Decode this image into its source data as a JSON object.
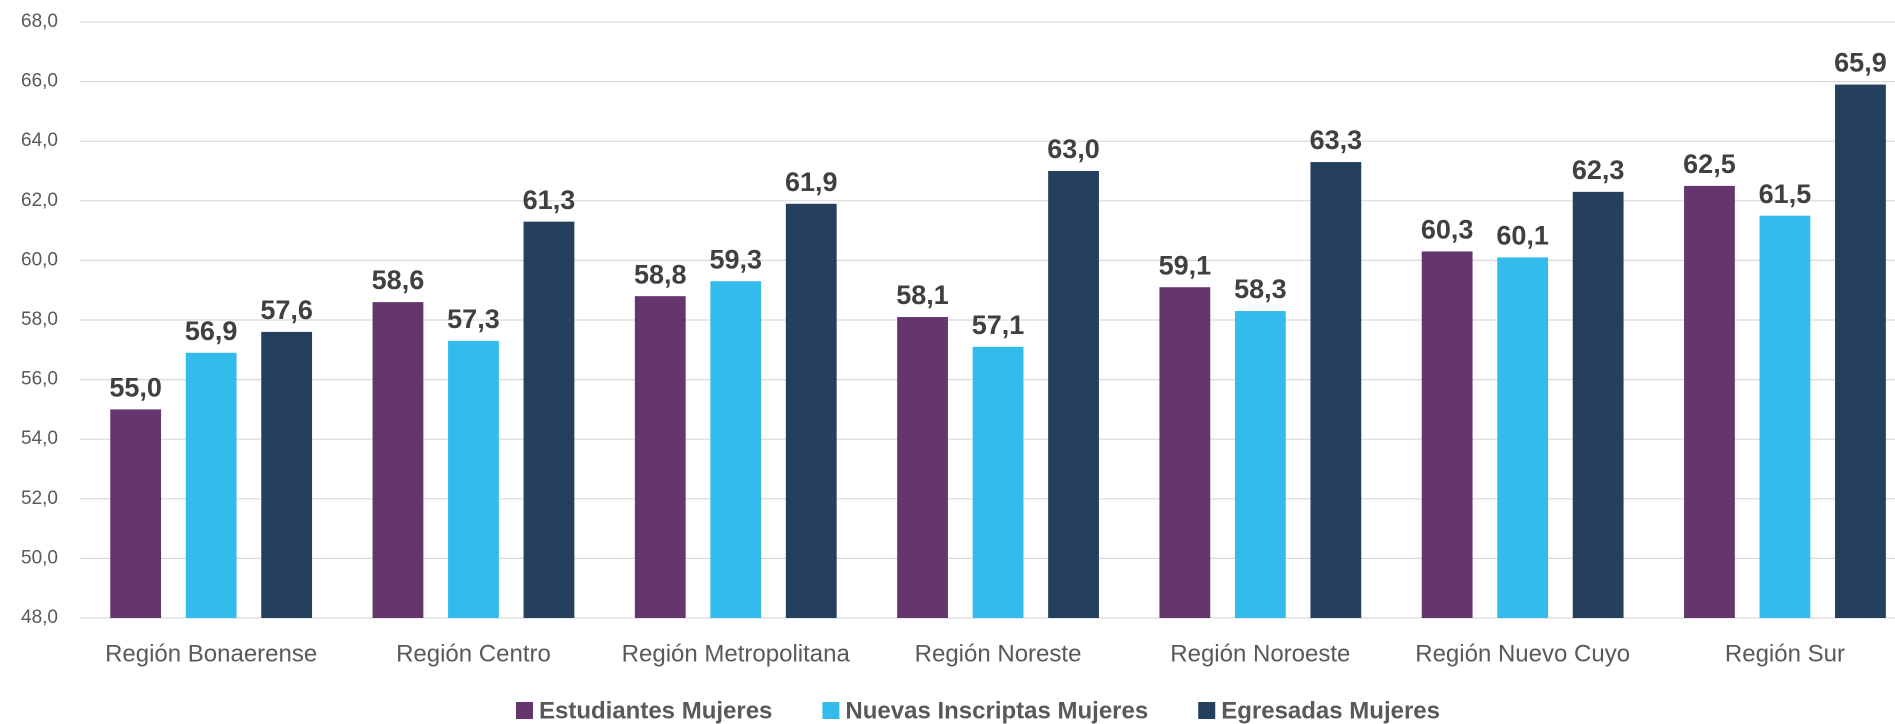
{
  "chart_data": {
    "type": "bar",
    "categories": [
      "Región Bonaerense",
      "Región Centro",
      "Región Metropolitana",
      "Región Noreste",
      "Región Noroeste",
      "Región Nuevo Cuyo",
      "Región Sur"
    ],
    "series": [
      {
        "name": "Estudiantes Mujeres",
        "color": "#65356e",
        "values": [
          55.0,
          58.6,
          58.8,
          58.1,
          59.1,
          60.3,
          62.5
        ],
        "value_labels": [
          "55,0",
          "58,6",
          "58,8",
          "58,1",
          "59,1",
          "60,3",
          "62,5"
        ]
      },
      {
        "name": "Nuevas Inscriptas Mujeres",
        "color": "#33bbec",
        "values": [
          56.9,
          57.3,
          59.3,
          57.1,
          58.3,
          60.1,
          61.5
        ],
        "value_labels": [
          "56,9",
          "57,3",
          "59,3",
          "57,1",
          "58,3",
          "60,1",
          "61,5"
        ]
      },
      {
        "name": "Egresadas Mujeres",
        "color": "#253f5f",
        "values": [
          57.6,
          61.3,
          61.9,
          63.0,
          63.3,
          62.3,
          65.9
        ],
        "value_labels": [
          "57,6",
          "61,3",
          "61,9",
          "63,0",
          "63,3",
          "62,3",
          "65,9"
        ]
      }
    ],
    "ylim": [
      48,
      68
    ],
    "yticks": [
      {
        "value": 48,
        "label": "48,0"
      },
      {
        "value": 50,
        "label": "50,0"
      },
      {
        "value": 52,
        "label": "52,0"
      },
      {
        "value": 54,
        "label": "54,0"
      },
      {
        "value": 56,
        "label": "56,0"
      },
      {
        "value": 58,
        "label": "58,0"
      },
      {
        "value": 60,
        "label": "60,0"
      },
      {
        "value": 62,
        "label": "62,0"
      },
      {
        "value": 64,
        "label": "64,0"
      },
      {
        "value": 66,
        "label": "66,0"
      },
      {
        "value": 68,
        "label": "68,0"
      }
    ],
    "grid": true,
    "legend": "bottom"
  }
}
